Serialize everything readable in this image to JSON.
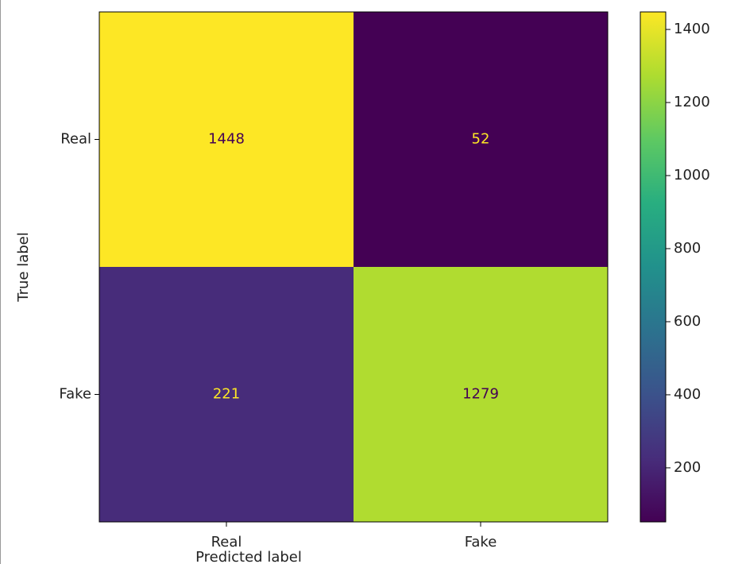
{
  "chart_data": {
    "type": "heatmap",
    "x_categories": [
      "Real",
      "Fake"
    ],
    "y_categories": [
      "Real",
      "Fake"
    ],
    "values": [
      [
        1448,
        52
      ],
      [
        221,
        1279
      ]
    ],
    "xlabel": "Predicted label",
    "ylabel": "True label",
    "colormap": "viridis",
    "clim": [
      52,
      1448
    ],
    "cticks": [
      200,
      400,
      600,
      800,
      1000,
      1200,
      1400
    ]
  }
}
